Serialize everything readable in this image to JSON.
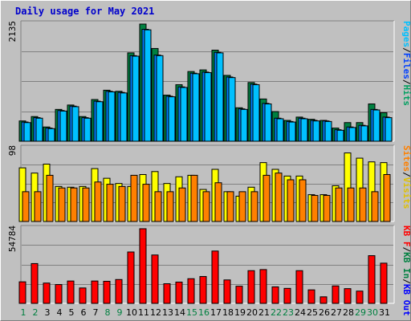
{
  "title": "Daily usage for May 2021",
  "chart_data": [
    {
      "type": "bar",
      "categories": [
        "1",
        "2",
        "3",
        "4",
        "5",
        "6",
        "7",
        "8",
        "9",
        "10",
        "11",
        "12",
        "13",
        "14",
        "15",
        "16",
        "17",
        "18",
        "19",
        "20",
        "21",
        "22",
        "23",
        "24",
        "25",
        "26",
        "27",
        "28",
        "29",
        "30",
        "31"
      ],
      "weekend_days": [
        "1",
        "2",
        "8",
        "9",
        "15",
        "16",
        "22",
        "23",
        "29",
        "30"
      ],
      "max_label": "2135",
      "ylim": [
        0,
        2135
      ],
      "grid": true,
      "legend": [
        "Pages",
        "Files",
        "Hits"
      ],
      "series": [
        {
          "name": "Hits",
          "color": "#008040",
          "values": [
            370,
            450,
            260,
            580,
            660,
            450,
            760,
            930,
            910,
            1610,
            2135,
            1690,
            840,
            1030,
            1270,
            1300,
            1660,
            1200,
            610,
            1070,
            770,
            540,
            380,
            440,
            400,
            380,
            240,
            340,
            340,
            680,
            520
          ]
        },
        {
          "name": "Files",
          "color": "#0080ff",
          "values": [
            350,
            430,
            240,
            560,
            640,
            430,
            730,
            910,
            890,
            1560,
            2040,
            1570,
            820,
            990,
            1240,
            1260,
            1620,
            1170,
            590,
            1040,
            690,
            420,
            360,
            420,
            380,
            370,
            210,
            260,
            290,
            580,
            440
          ]
        },
        {
          "name": "Pages",
          "color": "#00c0ff",
          "values": [
            340,
            420,
            230,
            550,
            630,
            420,
            720,
            900,
            880,
            1550,
            2030,
            1560,
            810,
            980,
            1230,
            1250,
            1610,
            1160,
            580,
            1030,
            680,
            410,
            350,
            410,
            370,
            360,
            200,
            250,
            280,
            570,
            430
          ]
        }
      ]
    },
    {
      "type": "bar",
      "categories": [
        "1",
        "2",
        "3",
        "4",
        "5",
        "6",
        "7",
        "8",
        "9",
        "10",
        "11",
        "12",
        "13",
        "14",
        "15",
        "16",
        "17",
        "18",
        "19",
        "20",
        "21",
        "22",
        "23",
        "24",
        "25",
        "26",
        "27",
        "28",
        "29",
        "30",
        "31"
      ],
      "max_label": "98",
      "ylim": [
        0,
        98
      ],
      "grid": true,
      "legend": [
        "Sites",
        "Visits"
      ],
      "series": [
        {
          "name": "Visits",
          "color": "#ffff00",
          "values": [
            72,
            65,
            77,
            47,
            46,
            47,
            71,
            58,
            51,
            47,
            63,
            67,
            51,
            60,
            62,
            43,
            70,
            40,
            34,
            46,
            79,
            70,
            61,
            61,
            36,
            36,
            48,
            92,
            85,
            80,
            79
          ]
        },
        {
          "name": "Sites",
          "color": "#ff8000",
          "values": [
            40,
            40,
            62,
            45,
            45,
            45,
            53,
            50,
            47,
            62,
            50,
            40,
            40,
            45,
            62,
            40,
            52,
            40,
            40,
            40,
            62,
            65,
            56,
            56,
            35,
            35,
            45,
            45,
            45,
            40,
            63
          ]
        }
      ]
    },
    {
      "type": "bar",
      "categories": [
        "1",
        "2",
        "3",
        "4",
        "5",
        "6",
        "7",
        "8",
        "9",
        "10",
        "11",
        "12",
        "13",
        "14",
        "15",
        "16",
        "17",
        "18",
        "19",
        "20",
        "21",
        "22",
        "23",
        "24",
        "25",
        "26",
        "27",
        "28",
        "29",
        "30",
        "31"
      ],
      "max_label": "54784",
      "ylim": [
        0,
        54784
      ],
      "grid": true,
      "legend": [
        "KB F",
        "KB In",
        "KB Out"
      ],
      "series": [
        {
          "name": "KB F",
          "color": "#ff0000",
          "values": [
            15800,
            29200,
            14900,
            13800,
            16400,
            11300,
            16400,
            16200,
            17500,
            37700,
            54784,
            35500,
            14400,
            15600,
            18100,
            19700,
            38400,
            17200,
            12600,
            24000,
            24800,
            12100,
            11000,
            24000,
            9900,
            4800,
            12800,
            10800,
            9000,
            35000,
            29500
          ]
        }
      ]
    }
  ]
}
